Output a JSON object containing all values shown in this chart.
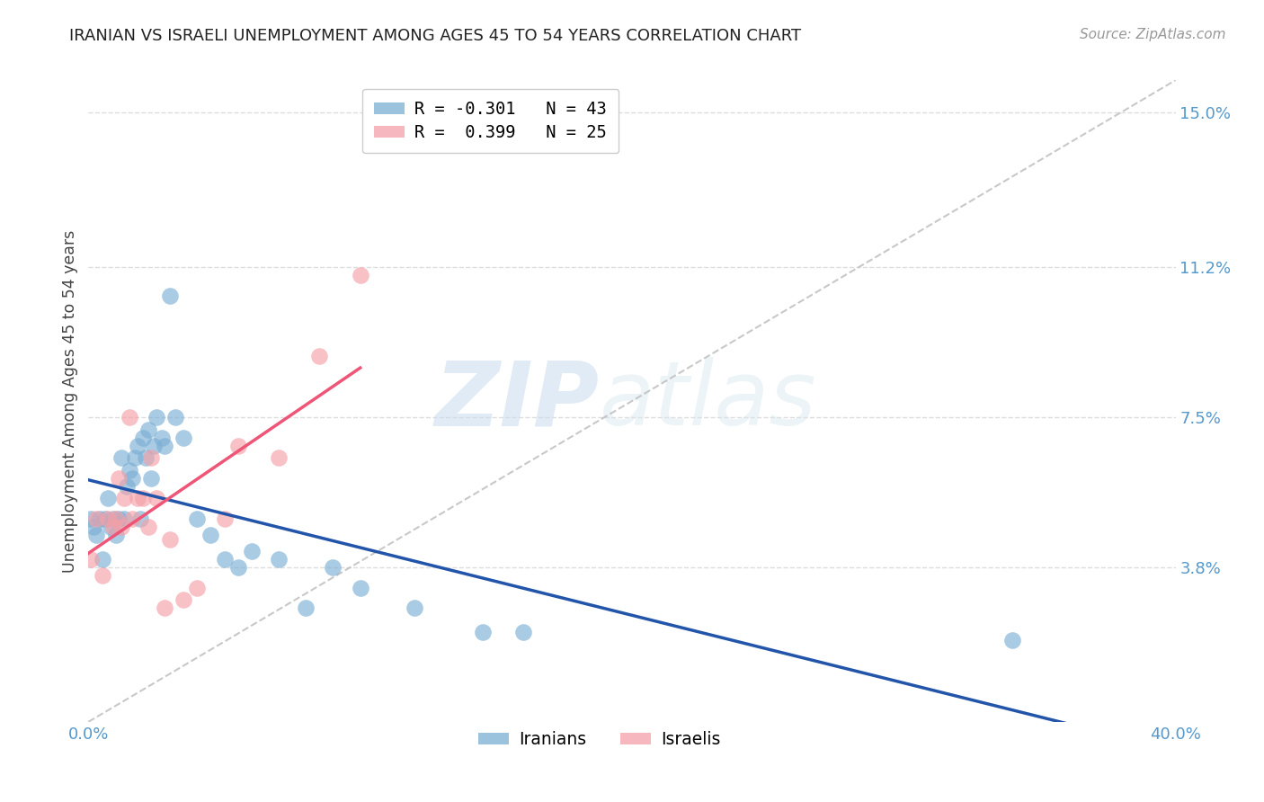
{
  "title": "IRANIAN VS ISRAELI UNEMPLOYMENT AMONG AGES 45 TO 54 YEARS CORRELATION CHART",
  "source": "Source: ZipAtlas.com",
  "ylabel": "Unemployment Among Ages 45 to 54 years",
  "ytick_values": [
    0.038,
    0.075,
    0.112,
    0.15
  ],
  "ytick_labels": [
    "3.8%",
    "7.5%",
    "11.2%",
    "15.0%"
  ],
  "xmin": 0.0,
  "xmax": 0.4,
  "ymin": 0.0,
  "ymax": 0.158,
  "legend_iranian": "R = -0.301   N = 43",
  "legend_israeli": "R =  0.399   N = 25",
  "color_iranian": "#7BAFD4",
  "color_israeli": "#F4A0A8",
  "line_color_iranian": "#2255AA",
  "line_color_israeli": "#EE5577",
  "line_color_diagonal": "#BBBBBB",
  "iranians_x": [
    0.001,
    0.002,
    0.003,
    0.004,
    0.005,
    0.006,
    0.007,
    0.008,
    0.009,
    0.01,
    0.011,
    0.012,
    0.013,
    0.014,
    0.015,
    0.016,
    0.017,
    0.018,
    0.019,
    0.02,
    0.021,
    0.022,
    0.023,
    0.024,
    0.025,
    0.027,
    0.028,
    0.03,
    0.032,
    0.035,
    0.04,
    0.045,
    0.05,
    0.055,
    0.06,
    0.07,
    0.08,
    0.09,
    0.1,
    0.12,
    0.145,
    0.16,
    0.34
  ],
  "iranians_y": [
    0.05,
    0.048,
    0.046,
    0.05,
    0.04,
    0.05,
    0.055,
    0.048,
    0.05,
    0.046,
    0.05,
    0.065,
    0.05,
    0.058,
    0.062,
    0.06,
    0.065,
    0.068,
    0.05,
    0.07,
    0.065,
    0.072,
    0.06,
    0.068,
    0.075,
    0.07,
    0.068,
    0.105,
    0.075,
    0.07,
    0.05,
    0.046,
    0.04,
    0.038,
    0.042,
    0.04,
    0.028,
    0.038,
    0.033,
    0.028,
    0.022,
    0.022,
    0.02
  ],
  "israelis_x": [
    0.001,
    0.003,
    0.005,
    0.007,
    0.009,
    0.01,
    0.011,
    0.012,
    0.013,
    0.015,
    0.016,
    0.018,
    0.02,
    0.022,
    0.023,
    0.025,
    0.028,
    0.03,
    0.035,
    0.04,
    0.05,
    0.055,
    0.07,
    0.085,
    0.1
  ],
  "israelis_y": [
    0.04,
    0.05,
    0.036,
    0.05,
    0.048,
    0.05,
    0.06,
    0.048,
    0.055,
    0.075,
    0.05,
    0.055,
    0.055,
    0.048,
    0.065,
    0.055,
    0.028,
    0.045,
    0.03,
    0.033,
    0.05,
    0.068,
    0.065,
    0.09,
    0.11
  ],
  "watermark_zip": "ZIP",
  "watermark_atlas": "atlas",
  "grid_color": "#DDDDDD",
  "background_color": "#FFFFFF",
  "tick_color": "#5599CC"
}
